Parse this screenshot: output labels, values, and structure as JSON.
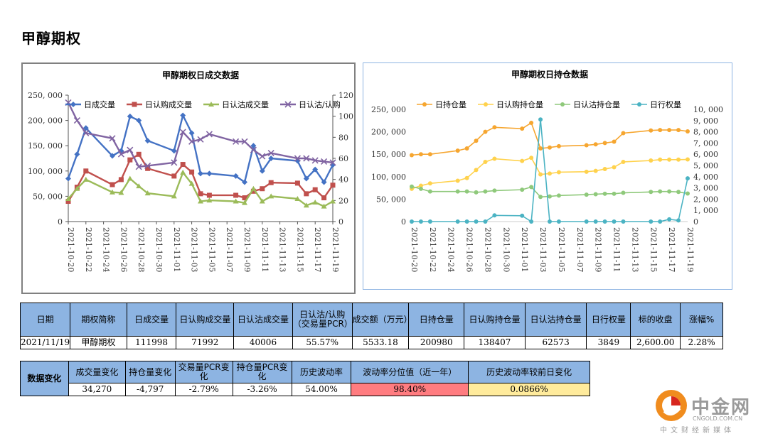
{
  "page": {
    "title": "甲醇期权"
  },
  "colors": {
    "c1_total": "#4472c4",
    "c1_call": "#c0504d",
    "c1_put": "#9bbb59",
    "c1_pcr": "#8064a2",
    "c2_total": "#f6a630",
    "c2_call": "#ffd24d",
    "c2_put": "#8fc97b",
    "c2_exercise": "#4bb3c3",
    "header_bg": "#8db4e2",
    "pink": "#ff7c80",
    "yellow": "#ffeb9c"
  },
  "chart_data": [
    {
      "type": "line",
      "title": "甲醇期权日成交数据",
      "x_labels": [
        "2021-10-20",
        "2021-10-22",
        "2021-10-24",
        "2021-10-26",
        "2021-10-28",
        "2021-10-30",
        "2021-11-01",
        "2021-11-03",
        "2021-11-05",
        "2021-11-07",
        "2021-11-09",
        "2021-11-11",
        "2021-11-13",
        "2021-11-15",
        "2021-11-17",
        "2021-11-19"
      ],
      "x": [
        "2021-10-20",
        "2021-10-21",
        "2021-10-22",
        "2021-10-25",
        "2021-10-26",
        "2021-10-27",
        "2021-10-28",
        "2021-10-29",
        "2021-11-01",
        "2021-11-02",
        "2021-11-03",
        "2021-11-04",
        "2021-11-05",
        "2021-11-08",
        "2021-11-09",
        "2021-11-10",
        "2021-11-11",
        "2021-11-12",
        "2021-11-15",
        "2021-11-16",
        "2021-11-17",
        "2021-11-18",
        "2021-11-19"
      ],
      "y_left": {
        "min": 0,
        "max": 250000,
        "step": 50000,
        "tick_labels": [
          "0",
          "50, 000",
          "100, 000",
          "150, 000",
          "200, 000",
          "250, 000"
        ]
      },
      "y_right": {
        "min": 0,
        "max": 120,
        "step": 20,
        "tick_labels": [
          "0",
          "20",
          "40",
          "60",
          "80",
          "100",
          "120"
        ]
      },
      "legend_position": "top",
      "series": [
        {
          "name": "日成交量",
          "axis": "left",
          "color_key": "c1_total",
          "marker": "diamond",
          "values": [
            85000,
            133000,
            185000,
            130000,
            140000,
            208000,
            200000,
            160000,
            140000,
            210000,
            175000,
            95000,
            95000,
            90000,
            78000,
            150000,
            100000,
            125000,
            120000,
            85000,
            103000,
            78000,
            112000
          ]
        },
        {
          "name": "日认购成交量",
          "axis": "left",
          "color_key": "c1_call",
          "marker": "square",
          "values": [
            40000,
            68000,
            100000,
            73000,
            83000,
            122000,
            133000,
            105000,
            90000,
            113000,
            98000,
            55000,
            52000,
            52000,
            47000,
            60000,
            65000,
            77000,
            76000,
            55000,
            63000,
            47000,
            72000
          ]
        },
        {
          "name": "日认沽成交量",
          "axis": "left",
          "color_key": "c1_put",
          "marker": "triangle",
          "values": [
            45000,
            65000,
            83000,
            58000,
            57000,
            85000,
            70000,
            56000,
            50000,
            97000,
            75000,
            40000,
            42000,
            40000,
            37000,
            65000,
            40000,
            50000,
            45000,
            32000,
            38000,
            30000,
            40000
          ]
        },
        {
          "name": "日认沽/认购",
          "axis": "right",
          "color_key": "c1_pcr",
          "marker": "x",
          "values": [
            113,
            96,
            84,
            79,
            64,
            68,
            52,
            53,
            56,
            85,
            76,
            78,
            83,
            76,
            76,
            68,
            62,
            65,
            60,
            60,
            58,
            57,
            56
          ]
        }
      ]
    },
    {
      "type": "line",
      "title": "甲醇期权日持仓数据",
      "x_labels": [
        "2021-10-20",
        "2021-10-22",
        "2021-10-24",
        "2021-10-26",
        "2021-10-28",
        "2021-10-30",
        "2021-11-01",
        "2021-11-03",
        "2021-11-05",
        "2021-11-07",
        "2021-11-09",
        "2021-11-11",
        "2021-11-13",
        "2021-11-15",
        "2021-11-17",
        "2021-11-19"
      ],
      "x": [
        "2021-10-20",
        "2021-10-21",
        "2021-10-22",
        "2021-10-25",
        "2021-10-26",
        "2021-10-27",
        "2021-10-28",
        "2021-10-29",
        "2021-11-01",
        "2021-11-02",
        "2021-11-03",
        "2021-11-04",
        "2021-11-05",
        "2021-11-08",
        "2021-11-09",
        "2021-11-10",
        "2021-11-11",
        "2021-11-12",
        "2021-11-15",
        "2021-11-16",
        "2021-11-17",
        "2021-11-18",
        "2021-11-19"
      ],
      "y_left": {
        "min": 0,
        "max": 250000,
        "step": 50000,
        "tick_labels": [
          "0",
          "50, 000",
          "100, 000",
          "150, 000",
          "200, 000",
          "250, 000"
        ]
      },
      "y_right": {
        "min": 0,
        "max": 10000,
        "step": 1000,
        "tick_labels": [
          "0",
          "1, 000",
          "2, 000",
          "3, 000",
          "4, 000",
          "5, 000",
          "6, 000",
          "7, 000",
          "8, 000",
          "9, 000",
          "10, 000"
        ]
      },
      "legend_position": "top",
      "series": [
        {
          "name": "日持仓量",
          "axis": "left",
          "color_key": "c2_total",
          "marker": "circle",
          "values": [
            148000,
            150000,
            150000,
            158000,
            163000,
            180000,
            200000,
            210000,
            207000,
            220000,
            163000,
            165000,
            168000,
            170000,
            172000,
            175000,
            178000,
            197000,
            203000,
            204000,
            204000,
            204000,
            200980
          ]
        },
        {
          "name": "日认购持仓量",
          "axis": "left",
          "color_key": "c2_call",
          "marker": "circle",
          "values": [
            73000,
            80000,
            85000,
            91000,
            97000,
            115000,
            133000,
            140000,
            135000,
            142000,
            105000,
            107000,
            110000,
            111000,
            113000,
            117000,
            121000,
            133000,
            136000,
            138000,
            138000,
            138000,
            138407
          ]
        },
        {
          "name": "日认沽持仓量",
          "axis": "left",
          "color_key": "c2_put",
          "marker": "circle",
          "values": [
            78000,
            73000,
            67000,
            67000,
            67000,
            65000,
            67000,
            69000,
            71000,
            77000,
            55000,
            56000,
            58000,
            60000,
            61000,
            62000,
            62000,
            64000,
            66000,
            67000,
            67000,
            66000,
            62573
          ]
        },
        {
          "name": "日行权量",
          "axis": "right",
          "color_key": "c2_exercise",
          "marker": "circle",
          "values": [
            0,
            0,
            0,
            0,
            0,
            0,
            0,
            550,
            520,
            0,
            9100,
            0,
            0,
            0,
            0,
            0,
            0,
            0,
            0,
            0,
            200,
            100,
            3849
          ]
        }
      ]
    }
  ],
  "table1": {
    "headers": [
      "日期",
      "期权简称",
      "日成交量",
      "日认购成交量",
      "日认沽成交量",
      "日认沽/认购（交易量PCR）",
      "成交额（万元）",
      "日持仓量",
      "日认购持仓量",
      "日认沽持仓量",
      "日行权量",
      "标的收盘",
      "涨幅%"
    ],
    "values": [
      "2021/11/19",
      "甲醇期权",
      "111998",
      "71992",
      "40006",
      "55.57%",
      "5533.18",
      "200980",
      "138407",
      "62573",
      "3849",
      "2,600.00",
      "2.28%"
    ]
  },
  "table2": {
    "row_label": "数据变化",
    "headers": [
      "成交量变化",
      "持仓量变化",
      "交易量PCR变化",
      "持仓量PCR变化",
      "历史波动率",
      "波动率分位值（近一年）",
      "历史波动率较前日变化"
    ],
    "values": [
      "34,270",
      "-4,797",
      "-2.79%",
      "-3.26%",
      "54.00%",
      "98.40%",
      "0.0866%"
    ]
  },
  "logo": {
    "name": "中金网",
    "domain": "CNGOLD.COM.CN",
    "tagline": "中文财经新媒体"
  }
}
